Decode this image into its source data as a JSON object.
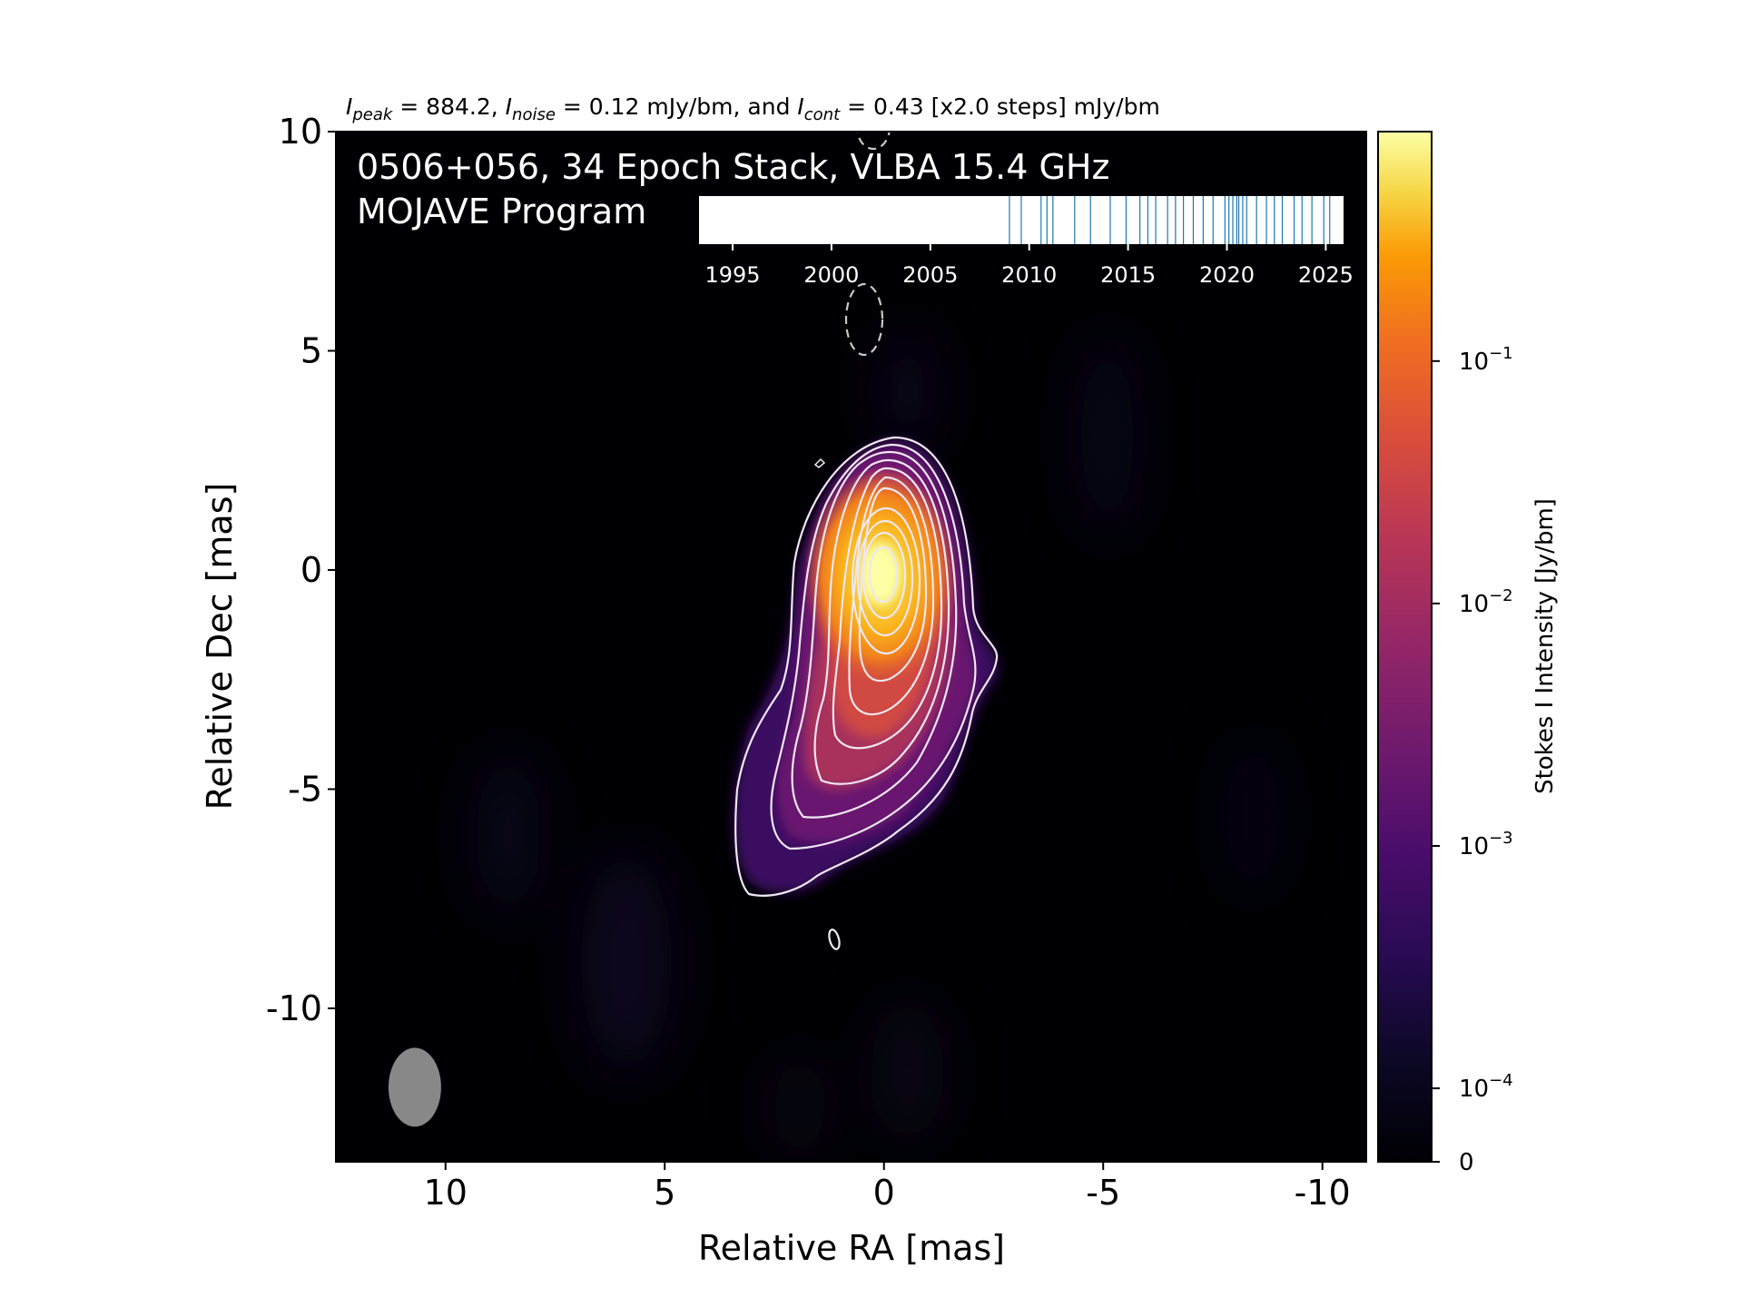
{
  "chart_data": {
    "type": "heatmap",
    "stats_line": {
      "peak_label": "I",
      "peak_sub": "peak",
      "peak_value": " = 884.2, ",
      "noise_label": "I",
      "noise_sub": "noise",
      "noise_value": " = 0.12 mJy/bm, and ",
      "cont_label": "I",
      "cont_sub": "cont",
      "cont_value": " = 0.43 [x2.0 steps] mJy/bm"
    },
    "overlay_title": "0506+056, 34 Epoch Stack, VLBA 15.4 GHz",
    "overlay_subtitle": "MOJAVE Program",
    "xlabel": "Relative RA [mas]",
    "ylabel": "Relative Dec [mas]",
    "xlim": [
      12.5,
      -11.0
    ],
    "ylim": [
      -13.5,
      10.0
    ],
    "xticks": [
      {
        "value": 10,
        "label": "10"
      },
      {
        "value": 5,
        "label": "5"
      },
      {
        "value": 0,
        "label": "0"
      },
      {
        "value": -5,
        "label": "-5"
      },
      {
        "value": -10,
        "label": "-10"
      }
    ],
    "yticks": [
      {
        "value": 10,
        "label": "10"
      },
      {
        "value": 5,
        "label": "5"
      },
      {
        "value": 0,
        "label": "0"
      },
      {
        "value": -5,
        "label": "-5"
      },
      {
        "value": -10,
        "label": "-10"
      }
    ],
    "peak_position": [
      0.05,
      -0.1
    ],
    "beam": {
      "ra": 10.7,
      "dec": -11.8,
      "major": 1.8,
      "minor": 1.2,
      "pa_deg": 0
    },
    "colorbar": {
      "label": "Stokes I Intensity [Jy/bm]",
      "colormap": "inferno",
      "scale": "log",
      "min": 0,
      "max": 0.8842,
      "ticks": [
        {
          "value": 0.1,
          "base": "10",
          "exp": "−1"
        },
        {
          "value": 0.01,
          "base": "10",
          "exp": "−2"
        },
        {
          "value": 0.001,
          "base": "10",
          "exp": "−3"
        },
        {
          "value": 0.0001,
          "base": "10",
          "exp": "−4"
        },
        {
          "value": 0,
          "base": "0",
          "exp": ""
        }
      ]
    },
    "epoch_timeline": {
      "range": [
        1993.3,
        2025.9
      ],
      "ticks": [
        {
          "value": 1995,
          "label": "1995"
        },
        {
          "value": 2000,
          "label": "2000"
        },
        {
          "value": 2005,
          "label": "2005"
        },
        {
          "value": 2010,
          "label": "2010"
        },
        {
          "value": 2015,
          "label": "2015"
        },
        {
          "value": 2020,
          "label": "2020"
        },
        {
          "value": 2025,
          "label": "2025"
        }
      ],
      "epochs": [
        2009.0,
        2009.6,
        2010.6,
        2010.9,
        2011.2,
        2012.3,
        2013.1,
        2014.1,
        2014.9,
        2015.6,
        2016.0,
        2016.4,
        2017.0,
        2017.4,
        2017.8,
        2018.3,
        2018.8,
        2019.3,
        2019.9,
        2020.1,
        2020.3,
        2020.5,
        2020.6,
        2020.8,
        2021.0,
        2021.5,
        2022.0,
        2022.4,
        2022.8,
        2023.4,
        2023.8,
        2024.3,
        2024.9,
        2025.2
      ]
    },
    "contour_levels_mJy": [
      0.43,
      0.86,
      1.72,
      3.44,
      6.88,
      13.76,
      27.52,
      55.04,
      110.08,
      220.16,
      440.32
    ]
  }
}
